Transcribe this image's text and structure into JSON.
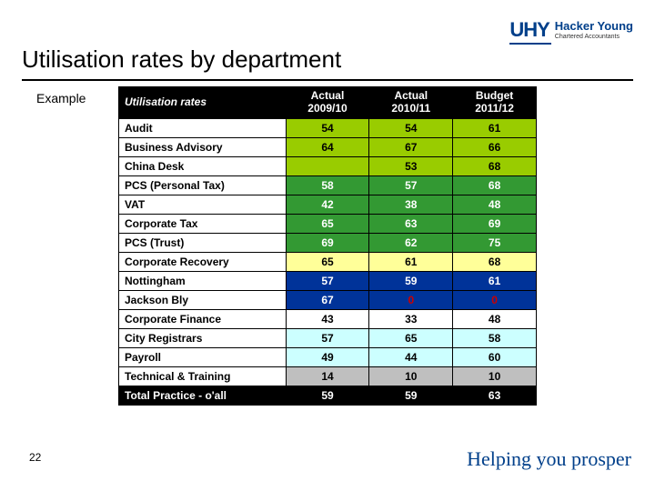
{
  "logo": {
    "mark": "UHY",
    "line1": "Hacker Young",
    "line2": "Chartered Accountants"
  },
  "title": "Utilisation rates by department",
  "example_label": "Example",
  "page_number": "22",
  "tagline": "Helping you prosper",
  "palette": {
    "header_bg": "#000000",
    "header_fg": "#ffffff",
    "lime": "#99cc00",
    "green": "#339933",
    "yellow": "#ffff99",
    "navy": "#003399",
    "white": "#ffffff",
    "cyan": "#ccffff",
    "grey": "#bfbfbf",
    "black": "#000000",
    "text_dark": "#000000",
    "text_light": "#ffffff",
    "text_red": "#cc0000"
  },
  "table": {
    "columns": [
      {
        "label_lines": [
          "Utilisation rates"
        ],
        "align": "left",
        "italic": true
      },
      {
        "label_lines": [
          "Actual",
          "2009/10"
        ],
        "align": "center"
      },
      {
        "label_lines": [
          "Actual",
          "2010/11"
        ],
        "align": "center"
      },
      {
        "label_lines": [
          "Budget",
          "2011/12"
        ],
        "align": "center"
      }
    ],
    "rows": [
      {
        "dept": "Audit",
        "vals": [
          "54",
          "54",
          "61"
        ],
        "row_color": "lime",
        "text": "text_dark"
      },
      {
        "dept": "Business Advisory",
        "vals": [
          "64",
          "67",
          "66"
        ],
        "row_color": "lime",
        "text": "text_dark"
      },
      {
        "dept": "China Desk",
        "vals": [
          "",
          "53",
          "68"
        ],
        "row_color": "lime",
        "text": "text_dark"
      },
      {
        "dept": "PCS (Personal Tax)",
        "vals": [
          "58",
          "57",
          "68"
        ],
        "row_color": "green",
        "text": "text_light"
      },
      {
        "dept": "VAT",
        "vals": [
          "42",
          "38",
          "48"
        ],
        "row_color": "green",
        "text": "text_light"
      },
      {
        "dept": "Corporate Tax",
        "vals": [
          "65",
          "63",
          "69"
        ],
        "row_color": "green",
        "text": "text_light"
      },
      {
        "dept": "PCS (Trust)",
        "vals": [
          "69",
          "62",
          "75"
        ],
        "row_color": "green",
        "text": "text_light"
      },
      {
        "dept": "Corporate Recovery",
        "vals": [
          "65",
          "61",
          "68"
        ],
        "row_color": "yellow",
        "text": "text_dark"
      },
      {
        "dept": "Nottingham",
        "vals": [
          "57",
          "59",
          "61"
        ],
        "row_color": "navy",
        "text": "text_light"
      },
      {
        "dept": "Jackson Bly",
        "vals": [
          "67",
          "0",
          "0"
        ],
        "row_color": "navy",
        "text": "text_light",
        "zero_red": true
      },
      {
        "dept": "Corporate Finance",
        "vals": [
          "43",
          "33",
          "48"
        ],
        "row_color": "white",
        "text": "text_dark"
      },
      {
        "dept": "City Registrars",
        "vals": [
          "57",
          "65",
          "58"
        ],
        "row_color": "cyan",
        "text": "text_dark"
      },
      {
        "dept": "Payroll",
        "vals": [
          "49",
          "44",
          "60"
        ],
        "row_color": "cyan",
        "text": "text_dark"
      },
      {
        "dept": "Technical & Training",
        "vals": [
          "14",
          "10",
          "10"
        ],
        "row_color": "grey",
        "text": "text_dark"
      },
      {
        "dept": "Total Practice - o'all",
        "vals": [
          "59",
          "59",
          "63"
        ],
        "row_color": "black",
        "text": "text_light"
      }
    ]
  }
}
